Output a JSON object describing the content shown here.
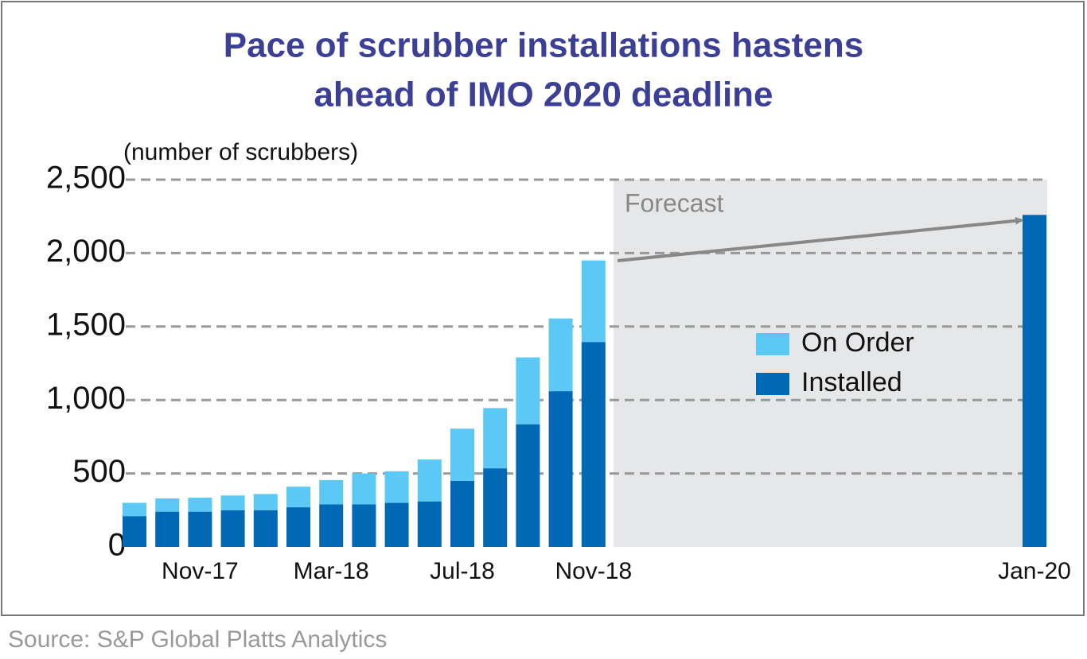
{
  "chart_data": {
    "type": "stacked_bar",
    "title": [
      "Pace of scrubber installations hastens",
      "ahead of IMO 2020 deadline"
    ],
    "y_axis_label": "(number of scrubbers)",
    "categories": [
      null,
      null,
      "Nov-17",
      null,
      null,
      null,
      "Mar-18",
      null,
      null,
      null,
      "Jul-18",
      null,
      null,
      null,
      "Nov-18",
      "Jan-20"
    ],
    "series": [
      {
        "name": "Installed",
        "color": "#0068b5",
        "values": [
          210,
          240,
          240,
          250,
          250,
          270,
          290,
          290,
          300,
          310,
          450,
          535,
          835,
          1060,
          1395,
          2260
        ]
      },
      {
        "name": "On Order",
        "color": "#5bc8f5",
        "values": [
          90,
          90,
          95,
          100,
          110,
          140,
          165,
          210,
          215,
          285,
          355,
          410,
          455,
          495,
          555,
          null
        ]
      }
    ],
    "ylim": [
      0,
      2500
    ],
    "yticks": [
      0,
      500,
      {
        "value": 1000,
        "label": "1,000"
      },
      {
        "value": 1500,
        "label": "1,500"
      },
      {
        "value": 2000,
        "label": "2,000"
      },
      {
        "value": 2500,
        "label": "2,500"
      }
    ],
    "grid": true,
    "forecast_label": "Forecast",
    "source": "Source: S&P Global Platts Analytics"
  }
}
